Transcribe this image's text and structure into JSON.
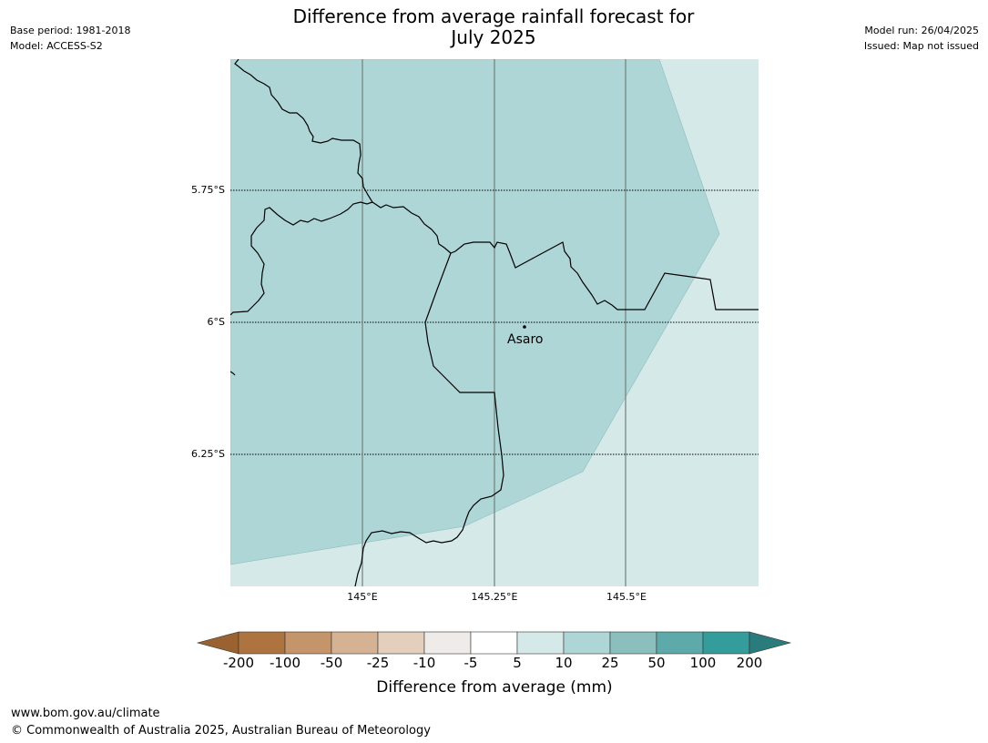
{
  "title": {
    "line1": "Difference from average rainfall forecast for",
    "line2": "July 2025"
  },
  "meta_left": {
    "base_period": "Base period: 1981-2018",
    "model": "Model: ACCESS-S2"
  },
  "meta_right": {
    "model_run": "Model run: 26/04/2025",
    "issued": "Issued: Map not issued"
  },
  "map": {
    "lat_labels": [
      "5.75°S",
      "6°S",
      "6.25°S"
    ],
    "lon_labels": [
      "145°E",
      "145.25°E",
      "145.5°E"
    ],
    "places": [
      {
        "name": "Asaro",
        "lat": -6.01,
        "lon": 145.3
      }
    ]
  },
  "legend": {
    "title": "Difference from average (mm)",
    "tick_labels": [
      "-200",
      "-100",
      "-50",
      "-25",
      "-10",
      "-5",
      "5",
      "10",
      "25",
      "50",
      "100",
      "200"
    ],
    "colors": [
      "#9a6230",
      "#ae7440",
      "#c4946a",
      "#d5b293",
      "#e4cfbd",
      "#eeebe8",
      "#ffffff",
      "#d5e9e9",
      "#aed6d6",
      "#8abfbe",
      "#5eaaaa",
      "#349c9a",
      "#2a7b7b"
    ]
  },
  "footer": {
    "url": "www.bom.gov.au/climate",
    "copyright": "© Commonwealth of Australia 2025, Australian Bureau of Meteorology"
  }
}
